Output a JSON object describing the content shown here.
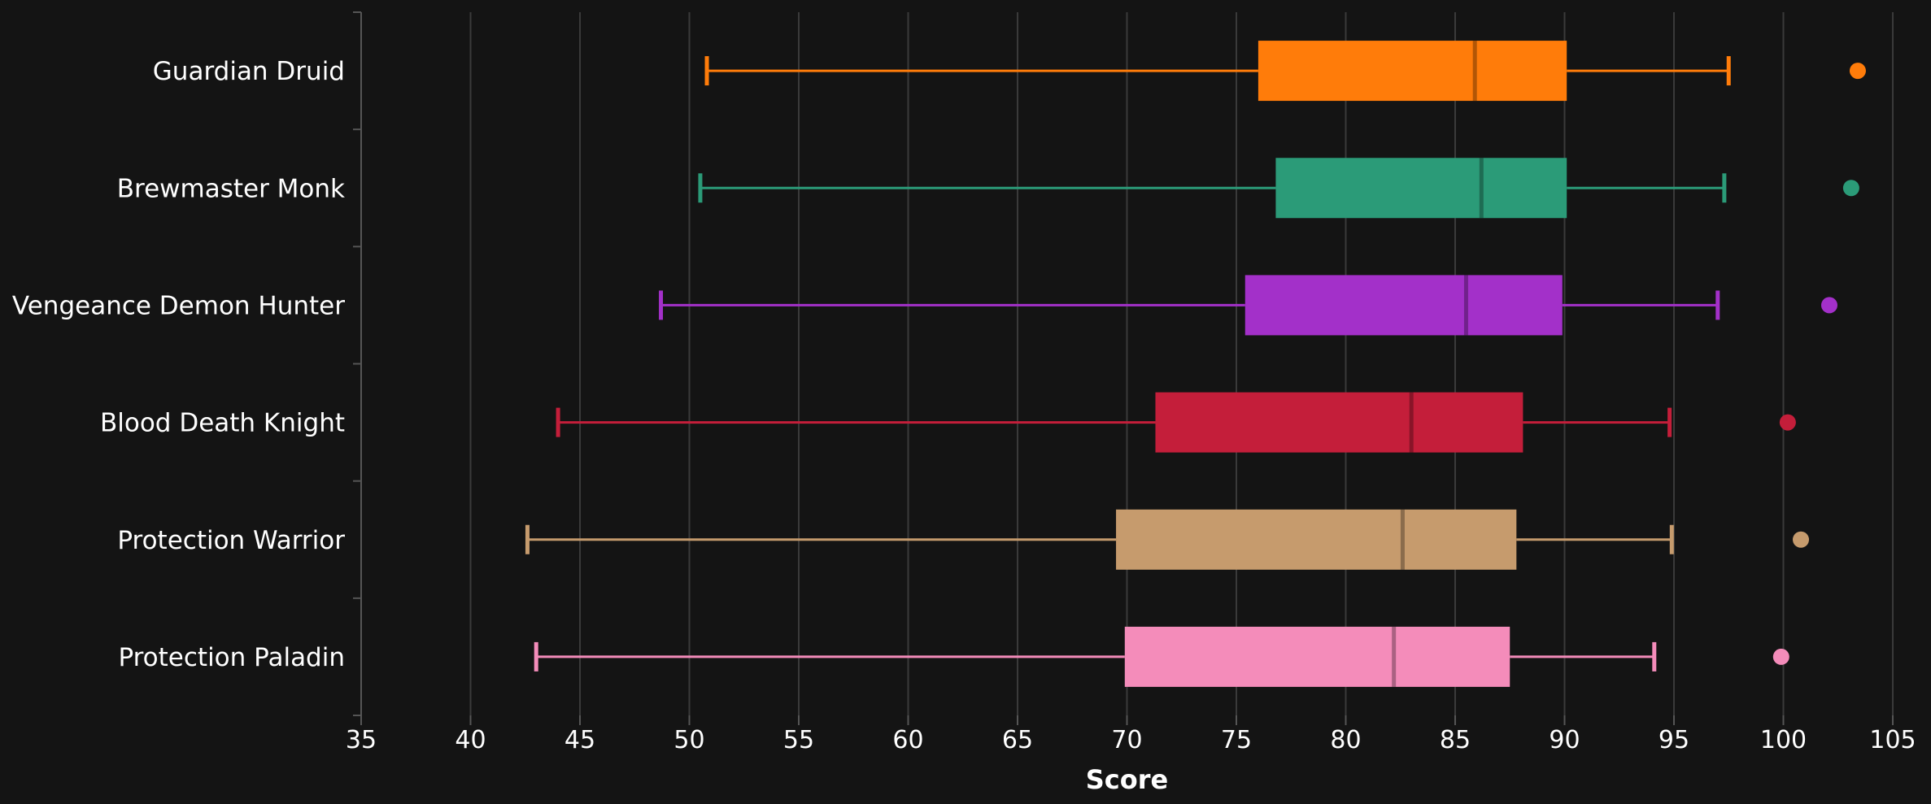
{
  "chart_data": {
    "type": "boxplot",
    "orientation": "horizontal",
    "xlabel": "Score",
    "ylabel": "",
    "title": "",
    "xlim": [
      35,
      105
    ],
    "xticks": [
      35,
      40,
      45,
      50,
      55,
      60,
      65,
      70,
      75,
      80,
      85,
      90,
      95,
      100,
      105
    ],
    "grid": "vertical",
    "legend": "none",
    "background": "#141414",
    "series": [
      {
        "category": "Guardian Druid",
        "color": "#ff7c0a",
        "min": 50.8,
        "q1": 76.0,
        "median": 85.9,
        "q3": 90.1,
        "max": 97.5,
        "outlier": 103.4
      },
      {
        "category": "Brewmaster Monk",
        "color": "#2b9b78",
        "min": 50.5,
        "q1": 76.8,
        "median": 86.2,
        "q3": 90.1,
        "max": 97.3,
        "outlier": 103.1
      },
      {
        "category": "Vengeance Demon Hunter",
        "color": "#a330c9",
        "min": 48.7,
        "q1": 75.4,
        "median": 85.5,
        "q3": 89.9,
        "max": 97.0,
        "outlier": 102.1
      },
      {
        "category": "Blood Death Knight",
        "color": "#c41e3a",
        "min": 44.0,
        "q1": 71.3,
        "median": 83.0,
        "q3": 88.1,
        "max": 94.8,
        "outlier": 100.2
      },
      {
        "category": "Protection Warrior",
        "color": "#c69b6d",
        "min": 42.6,
        "q1": 69.5,
        "median": 82.6,
        "q3": 87.8,
        "max": 94.9,
        "outlier": 100.8
      },
      {
        "category": "Protection Paladin",
        "color": "#f48cba",
        "min": 43.0,
        "q1": 69.9,
        "median": 82.2,
        "q3": 87.5,
        "max": 94.1,
        "outlier": 99.9
      }
    ]
  }
}
